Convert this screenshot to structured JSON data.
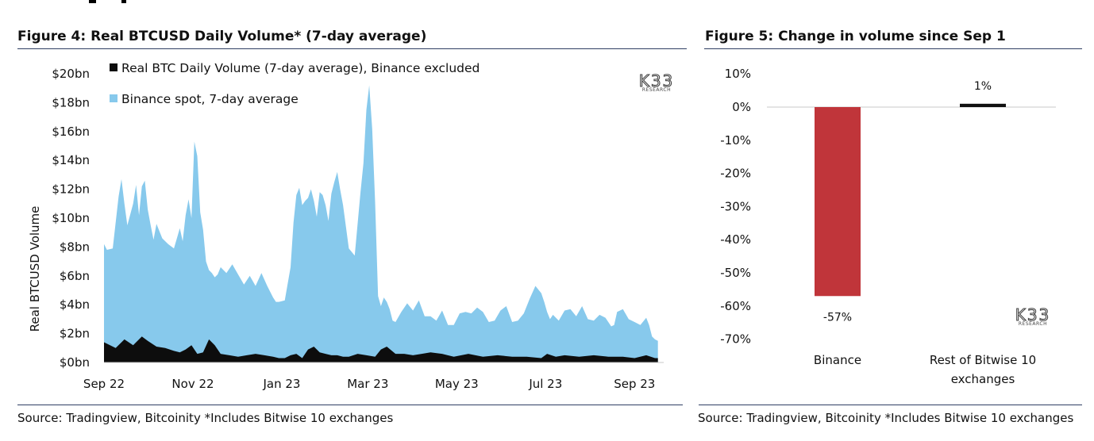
{
  "figure4": {
    "title": "Figure 4: Real BTCUSD Daily Volume* (7-day average)",
    "source": "Source: Tradingview, Bitcoinity *Includes Bitwise 10 exchanges",
    "watermark": "K33",
    "watermark_sub": "RESEARCH"
  },
  "figure5": {
    "title": "Figure 5: Change in volume since Sep 1",
    "source": "Source: Tradingview, Bitcoinity *Includes Bitwise 10 exchanges",
    "watermark": "K33",
    "watermark_sub": "RESEARCH"
  },
  "colors": {
    "binance_area": "#87c9ec",
    "real_volume_area": "#0d0d0d",
    "bar_binance": "#c0353a",
    "bar_rest": "#111111",
    "rule": "#2f3f63"
  },
  "chart_data": [
    {
      "type": "area",
      "title": "Figure 4: Real BTCUSD Daily Volume* (7-day average)",
      "ylabel": "Real BTCUSD Volume",
      "xlabel": "",
      "ylim": [
        0,
        20
      ],
      "y_ticks": [
        "$0bn",
        "$2bn",
        "$4bn",
        "$6bn",
        "$8bn",
        "$10bn",
        "$12bn",
        "$14bn",
        "$16bn",
        "$18bn",
        "$20bn"
      ],
      "x_ticks": [
        "Sep 22",
        "Nov 22",
        "Jan 23",
        "Mar 23",
        "May 23",
        "Jul 23",
        "Sep 23"
      ],
      "x_tick_days": [
        0,
        61,
        122,
        181,
        242,
        303,
        364
      ],
      "x_range_days": [
        0,
        384
      ],
      "legend_position": "top-left",
      "grid": false,
      "series": [
        {
          "name": "Real BTC Daily Volume (7-day average), Binance excluded",
          "x": [
            0,
            8,
            14,
            20,
            26,
            30,
            36,
            42,
            48,
            52,
            56,
            60,
            64,
            68,
            72,
            76,
            80,
            86,
            92,
            98,
            104,
            110,
            116,
            120,
            124,
            128,
            132,
            136,
            140,
            144,
            148,
            152,
            156,
            160,
            164,
            168,
            174,
            180,
            186,
            190,
            194,
            200,
            206,
            212,
            218,
            224,
            232,
            240,
            250,
            260,
            270,
            280,
            290,
            300,
            304,
            310,
            316,
            326,
            336,
            346,
            356,
            364,
            372,
            378,
            380
          ],
          "values": [
            1.4,
            1.0,
            1.6,
            1.2,
            1.8,
            1.5,
            1.1,
            1.0,
            0.8,
            0.7,
            0.9,
            1.2,
            0.6,
            0.7,
            1.6,
            1.2,
            0.6,
            0.5,
            0.4,
            0.5,
            0.6,
            0.5,
            0.4,
            0.3,
            0.3,
            0.5,
            0.6,
            0.3,
            0.9,
            1.1,
            0.7,
            0.6,
            0.5,
            0.5,
            0.4,
            0.4,
            0.6,
            0.5,
            0.4,
            0.9,
            1.1,
            0.6,
            0.6,
            0.5,
            0.6,
            0.7,
            0.6,
            0.4,
            0.6,
            0.4,
            0.5,
            0.4,
            0.4,
            0.3,
            0.6,
            0.4,
            0.5,
            0.4,
            0.5,
            0.4,
            0.4,
            0.3,
            0.5,
            0.3,
            0.3
          ]
        },
        {
          "name": "Binance spot, 7-day average",
          "x": [
            0,
            2,
            6,
            10,
            12,
            14,
            16,
            20,
            22,
            24,
            26,
            28,
            30,
            32,
            34,
            36,
            40,
            44,
            48,
            52,
            54,
            56,
            58,
            60,
            62,
            64,
            66,
            68,
            70,
            72,
            74,
            76,
            78,
            80,
            84,
            88,
            92,
            96,
            100,
            104,
            108,
            112,
            116,
            118,
            120,
            124,
            128,
            130,
            132,
            134,
            136,
            138,
            140,
            142,
            144,
            146,
            148,
            150,
            152,
            154,
            156,
            158,
            160,
            162,
            164,
            168,
            172,
            176,
            178,
            180,
            182,
            184,
            186,
            188,
            190,
            192,
            194,
            196,
            198,
            200,
            204,
            208,
            212,
            216,
            220,
            224,
            228,
            232,
            236,
            240,
            244,
            248,
            252,
            256,
            260,
            264,
            268,
            272,
            276,
            280,
            284,
            288,
            292,
            296,
            300,
            302,
            304,
            306,
            308,
            312,
            316,
            320,
            324,
            328,
            332,
            336,
            340,
            344,
            348,
            350,
            352,
            356,
            360,
            364,
            368,
            372,
            374,
            376,
            378,
            380
          ],
          "values": [
            8.2,
            7.8,
            7.9,
            11.5,
            12.7,
            11.0,
            9.5,
            11.0,
            12.3,
            10.2,
            12.2,
            12.6,
            10.6,
            9.5,
            8.5,
            9.6,
            8.6,
            8.2,
            7.9,
            9.3,
            8.4,
            10.2,
            11.3,
            10.0,
            15.3,
            14.3,
            10.4,
            9.2,
            7.0,
            6.4,
            6.2,
            5.9,
            6.1,
            6.6,
            6.2,
            6.8,
            6.1,
            5.4,
            6.0,
            5.3,
            6.2,
            5.3,
            4.5,
            4.2,
            4.2,
            4.3,
            6.6,
            9.7,
            11.6,
            12.1,
            10.9,
            11.2,
            11.4,
            12.0,
            11.2,
            10.1,
            11.8,
            11.6,
            10.9,
            9.8,
            11.7,
            12.5,
            13.2,
            12.0,
            10.9,
            7.9,
            7.4,
            11.8,
            13.8,
            17.5,
            19.2,
            16.2,
            11.1,
            4.6,
            3.9,
            4.5,
            4.2,
            3.7,
            2.9,
            2.8,
            3.5,
            4.1,
            3.6,
            4.3,
            3.2,
            3.2,
            2.9,
            3.6,
            2.6,
            2.6,
            3.4,
            3.5,
            3.4,
            3.8,
            3.5,
            2.8,
            2.9,
            3.6,
            3.9,
            2.8,
            2.9,
            3.4,
            4.4,
            5.3,
            4.8,
            4.2,
            3.5,
            3.0,
            3.3,
            2.9,
            3.6,
            3.7,
            3.2,
            3.9,
            3.0,
            2.9,
            3.3,
            3.1,
            2.5,
            2.6,
            3.5,
            3.7,
            3.0,
            2.8,
            2.6,
            3.1,
            2.6,
            1.8,
            1.6,
            1.5
          ]
        }
      ]
    },
    {
      "type": "bar",
      "title": "Figure 5: Change in volume since Sep 1",
      "categories": [
        "Binance",
        "Rest of Bitwise 10 exchanges"
      ],
      "values": [
        -57,
        1
      ],
      "data_labels": [
        "-57%",
        "1%"
      ],
      "ylim": [
        -70,
        10
      ],
      "y_ticks": [
        "10%",
        "0%",
        "-10%",
        "-20%",
        "-30%",
        "-40%",
        "-50%",
        "-60%",
        "-70%"
      ],
      "xlabel": "",
      "ylabel": "",
      "grid": false
    }
  ]
}
